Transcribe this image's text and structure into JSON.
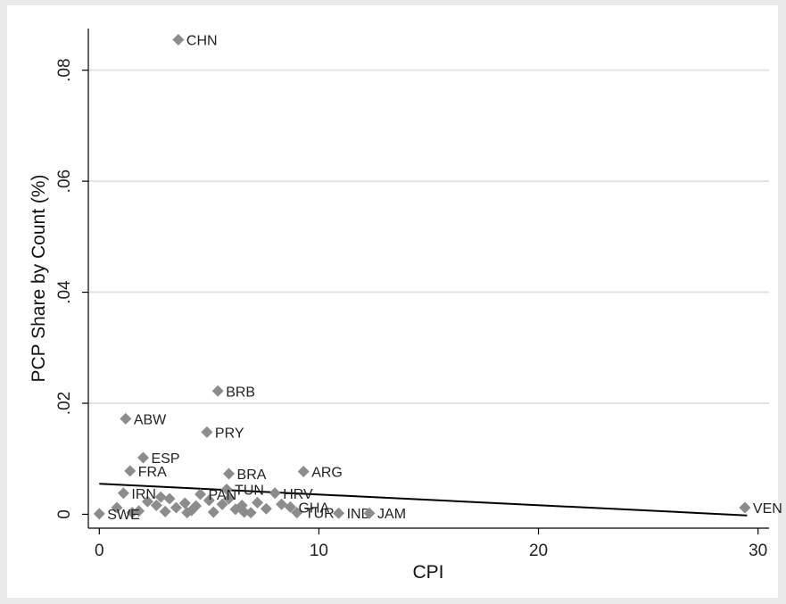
{
  "chart_data": {
    "type": "scatter",
    "title": "",
    "xlabel": "CPI",
    "ylabel": "PCP Share by Count (%)",
    "xlim": [
      -0.5,
      30.5
    ],
    "ylim": [
      -0.0025,
      0.0875
    ],
    "x_ticks": [
      0,
      10,
      20,
      30
    ],
    "x_tick_labels": [
      "0",
      "10",
      "20",
      "30"
    ],
    "y_ticks": [
      0,
      0.02,
      0.04,
      0.06,
      0.08
    ],
    "y_tick_labels": [
      "0",
      ".02",
      ".04",
      ".06",
      ".08"
    ],
    "grid": "horizontal",
    "legend": "none",
    "marker_color": "#8c8c8c",
    "fit_line": {
      "x": [
        0,
        29.5
      ],
      "y": [
        0.0055,
        -0.0002
      ],
      "color": "#000000"
    },
    "points": [
      {
        "label": "CHN",
        "x": 3.6,
        "y": 0.0855
      },
      {
        "label": "BRB",
        "x": 5.4,
        "y": 0.0222
      },
      {
        "label": "ABW",
        "x": 1.2,
        "y": 0.0172
      },
      {
        "label": "PRY",
        "x": 4.9,
        "y": 0.0148
      },
      {
        "label": "ESP",
        "x": 2.0,
        "y": 0.0102
      },
      {
        "label": "FRA",
        "x": 1.4,
        "y": 0.0078
      },
      {
        "label": "BRA",
        "x": 5.9,
        "y": 0.0073
      },
      {
        "label": "ARG",
        "x": 9.3,
        "y": 0.0077
      },
      {
        "label": "TUN",
        "x": 5.8,
        "y": 0.0045
      },
      {
        "label": "PAN",
        "x": 4.6,
        "y": 0.0036
      },
      {
        "label": "HRV",
        "x": 8.0,
        "y": 0.0038
      },
      {
        "label": "IRN",
        "x": 1.1,
        "y": 0.0038
      },
      {
        "label": "VEN",
        "x": 29.4,
        "y": 0.0012
      },
      {
        "label": "IND",
        "x": 10.9,
        "y": 0.0002
      },
      {
        "label": "JAM",
        "x": 12.3,
        "y": 0.0002
      },
      {
        "label": "TUR",
        "x": 9.0,
        "y": 0.0003
      },
      {
        "label": "GHA",
        "x": 8.7,
        "y": 0.0013
      },
      {
        "label": "SWE",
        "x": 0.0,
        "y": 0.0001
      }
    ],
    "unlabeled_points": [
      {
        "x": 0.8,
        "y": 0.0012
      },
      {
        "x": 1.8,
        "y": 0.0006
      },
      {
        "x": 2.2,
        "y": 0.0023
      },
      {
        "x": 2.6,
        "y": 0.0016
      },
      {
        "x": 3.0,
        "y": 0.0005
      },
      {
        "x": 3.2,
        "y": 0.0028
      },
      {
        "x": 3.5,
        "y": 0.0012
      },
      {
        "x": 3.9,
        "y": 0.002
      },
      {
        "x": 4.2,
        "y": 0.0007
      },
      {
        "x": 4.4,
        "y": 0.0015
      },
      {
        "x": 5.0,
        "y": 0.0025
      },
      {
        "x": 5.2,
        "y": 0.0004
      },
      {
        "x": 5.6,
        "y": 0.0018
      },
      {
        "x": 6.2,
        "y": 0.0009
      },
      {
        "x": 6.5,
        "y": 0.0016
      },
      {
        "x": 6.9,
        "y": 0.0003
      },
      {
        "x": 7.2,
        "y": 0.0021
      },
      {
        "x": 7.6,
        "y": 0.001
      },
      {
        "x": 8.3,
        "y": 0.0018
      },
      {
        "x": 1.5,
        "y": 0.0003
      },
      {
        "x": 2.8,
        "y": 0.0031
      },
      {
        "x": 4.0,
        "y": 0.0003
      },
      {
        "x": 5.9,
        "y": 0.0028
      },
      {
        "x": 6.6,
        "y": 0.0004
      }
    ]
  }
}
